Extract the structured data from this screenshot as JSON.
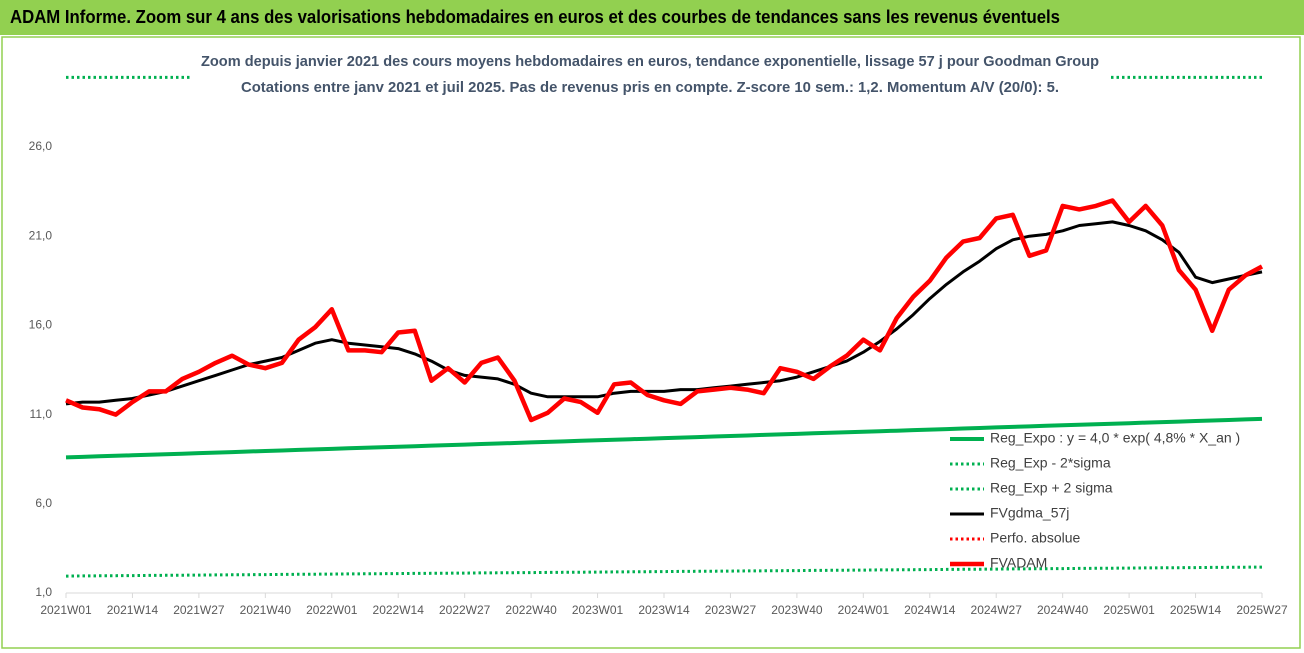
{
  "header": "ADAM Informe. Zoom sur 4 ans des valorisations hebdomadaires en euros et des courbes de tendances sans les revenus éventuels",
  "chart_data": {
    "type": "line",
    "title": "Zoom depuis janvier 2021 des cours moyens hebdomadaires en euros, tendance exponentielle, lissage 57 j pour Goodman Group",
    "subtitle": "Cotations entre janv 2021 et juil 2025. Pas de revenus pris en compte. Z-score 10 sem.: 1,2. Momentum A/V (20/0): 5.",
    "categories": [
      "2021W01",
      null,
      null,
      null,
      "2021W14",
      null,
      null,
      null,
      "2021W27",
      null,
      null,
      null,
      "2021W40",
      null,
      null,
      null,
      "2022W01",
      null,
      null,
      null,
      "2022W14",
      null,
      null,
      null,
      "2022W27",
      null,
      null,
      null,
      "2022W40",
      null,
      null,
      null,
      "2023W01",
      null,
      null,
      null,
      "2023W14",
      null,
      null,
      null,
      "2023W27",
      null,
      null,
      null,
      "2023W40",
      null,
      null,
      null,
      "2024W01",
      null,
      null,
      null,
      "2024W14",
      null,
      null,
      null,
      "2024W27",
      null,
      null,
      null,
      "2024W40",
      null,
      null,
      null,
      "2025W01",
      null,
      null,
      null,
      "2025W14",
      null,
      null,
      null,
      "2025W27"
    ],
    "ylim": [
      1,
      30
    ],
    "yticks": [
      {
        "value": 1,
        "label": "1,0"
      },
      {
        "value": 6,
        "label": "6,0"
      },
      {
        "value": 11,
        "label": "11,0"
      },
      {
        "value": 16,
        "label": "16,0"
      },
      {
        "value": 21,
        "label": "21,0"
      },
      {
        "value": 26,
        "label": "26,0"
      }
    ],
    "grid": false,
    "legend": "lower right",
    "series": [
      {
        "name": "Reg_Expo : y = 4,0 * exp( 4,8% *  X_an )",
        "color": "#00b050",
        "style": "solid",
        "values": [
          8.6,
          8.63,
          8.66,
          8.69,
          8.72,
          8.75,
          8.78,
          8.81,
          8.84,
          8.87,
          8.9,
          8.93,
          8.96,
          8.99,
          9.02,
          9.05,
          9.08,
          9.11,
          9.14,
          9.17,
          9.2,
          9.23,
          9.26,
          9.29,
          9.32,
          9.35,
          9.38,
          9.41,
          9.44,
          9.47,
          9.5,
          9.53,
          9.56,
          9.59,
          9.62,
          9.65,
          9.68,
          9.71,
          9.74,
          9.77,
          9.8,
          9.83,
          9.86,
          9.89,
          9.92,
          9.95,
          9.98,
          10.01,
          10.04,
          10.07,
          10.1,
          10.13,
          10.16,
          10.19,
          10.22,
          10.25,
          10.28,
          10.31,
          10.34,
          10.37,
          10.4,
          10.43,
          10.46,
          10.49,
          10.52,
          10.55,
          10.58,
          10.61,
          10.64,
          10.67,
          10.7,
          10.73,
          10.76
        ]
      },
      {
        "name": "Reg_Exp - 2*sigma",
        "color": "#00b050",
        "style": "dotted",
        "values": [
          1.95,
          1.957,
          1.964,
          1.971,
          1.978,
          1.985,
          1.992,
          1.999,
          2.006,
          2.013,
          2.02,
          2.027,
          2.034,
          2.041,
          2.048,
          2.055,
          2.062,
          2.069,
          2.076,
          2.083,
          2.09,
          2.097,
          2.104,
          2.111,
          2.118,
          2.125,
          2.132,
          2.139,
          2.146,
          2.153,
          2.16,
          2.167,
          2.174,
          2.181,
          2.188,
          2.195,
          2.202,
          2.209,
          2.216,
          2.223,
          2.23,
          2.237,
          2.244,
          2.251,
          2.258,
          2.265,
          2.272,
          2.279,
          2.286,
          2.293,
          2.3,
          2.307,
          2.314,
          2.321,
          2.328,
          2.335,
          2.342,
          2.349,
          2.356,
          2.363,
          2.37,
          2.377,
          2.384,
          2.391,
          2.398,
          2.405,
          2.412,
          2.419,
          2.426,
          2.433,
          2.44,
          2.447,
          2.454
        ]
      },
      {
        "name": "Reg_Exp + 2 sigma",
        "color": "#00b050",
        "style": "dotted",
        "values": [
          29.9,
          29.9,
          29.9,
          29.9,
          29.9,
          29.9,
          29.9,
          29.9,
          29.9,
          29.9,
          29.9,
          29.9,
          29.9,
          29.9,
          29.9,
          29.9,
          29.9,
          29.9,
          29.9,
          29.9,
          29.9,
          29.9,
          29.9,
          29.9,
          29.9,
          29.9,
          29.9,
          29.9,
          29.9,
          29.9,
          29.9,
          29.9,
          29.9,
          29.9,
          29.9,
          29.9,
          29.9,
          29.9,
          29.9,
          29.9,
          29.9,
          29.9,
          29.9,
          29.9,
          29.9,
          29.9,
          29.9,
          29.9,
          29.9,
          29.9,
          29.9,
          29.9,
          29.9,
          29.9,
          29.9,
          29.9,
          29.9,
          29.9,
          29.9,
          29.9,
          29.9,
          29.9,
          29.9,
          29.9,
          29.9,
          29.9,
          29.9,
          29.9,
          29.9,
          29.9,
          29.9,
          29.9,
          29.9
        ]
      },
      {
        "name": "FVgdma_57j",
        "color": "#000000",
        "style": "solid",
        "values": [
          11.6,
          11.7,
          11.7,
          11.8,
          11.9,
          12.1,
          12.3,
          12.6,
          12.9,
          13.2,
          13.5,
          13.8,
          14.0,
          14.2,
          14.6,
          15.0,
          15.2,
          15.0,
          14.9,
          14.8,
          14.7,
          14.4,
          14.0,
          13.5,
          13.2,
          13.1,
          13.0,
          12.7,
          12.2,
          12.0,
          12.0,
          12.0,
          12.0,
          12.2,
          12.3,
          12.3,
          12.3,
          12.4,
          12.4,
          12.5,
          12.6,
          12.7,
          12.8,
          12.9,
          13.1,
          13.4,
          13.7,
          14.0,
          14.5,
          15.1,
          15.8,
          16.6,
          17.5,
          18.3,
          19.0,
          19.6,
          20.3,
          20.8,
          21.0,
          21.1,
          21.3,
          21.6,
          21.7,
          21.8,
          21.6,
          21.3,
          20.8,
          20.1,
          18.7,
          18.4,
          18.6,
          18.8,
          19.0
        ]
      },
      {
        "name": "Perfo. absolue",
        "color": "#ff0000",
        "style": "dotted",
        "values": [
          null,
          null,
          null,
          null,
          null,
          null,
          null,
          null,
          null,
          null,
          null,
          null,
          null,
          null,
          null,
          null,
          null,
          null,
          null,
          null,
          null,
          null,
          null,
          null,
          null,
          null,
          null,
          null,
          null,
          null,
          null,
          null,
          null,
          null,
          null,
          null,
          null,
          null,
          null,
          null,
          null,
          null,
          null,
          null,
          null,
          null,
          null,
          null,
          null,
          null,
          null,
          null,
          null,
          null,
          null,
          null,
          null,
          null,
          null,
          null,
          null,
          null,
          null,
          null,
          null,
          null,
          null,
          null,
          null,
          null,
          null,
          null,
          null
        ]
      },
      {
        "name": "FVADAM",
        "color": "#ff0000",
        "style": "solid",
        "values": [
          11.8,
          11.4,
          11.3,
          11.0,
          11.7,
          12.3,
          12.3,
          13.0,
          13.4,
          13.9,
          14.3,
          13.8,
          13.6,
          13.9,
          15.2,
          15.9,
          16.9,
          14.6,
          14.6,
          14.5,
          15.6,
          15.7,
          12.9,
          13.6,
          12.8,
          13.9,
          14.2,
          12.9,
          10.7,
          11.1,
          11.9,
          11.7,
          11.1,
          12.7,
          12.8,
          12.1,
          11.8,
          11.6,
          12.3,
          12.4,
          12.5,
          12.4,
          12.2,
          13.6,
          13.4,
          13.0,
          13.7,
          14.3,
          15.2,
          14.6,
          16.4,
          17.6,
          18.5,
          19.8,
          20.7,
          20.9,
          22.0,
          22.2,
          19.9,
          20.2,
          22.7,
          22.5,
          22.7,
          23.0,
          21.8,
          22.7,
          21.6,
          19.1,
          18.0,
          15.7,
          18.0,
          18.8,
          19.3
        ]
      }
    ]
  }
}
